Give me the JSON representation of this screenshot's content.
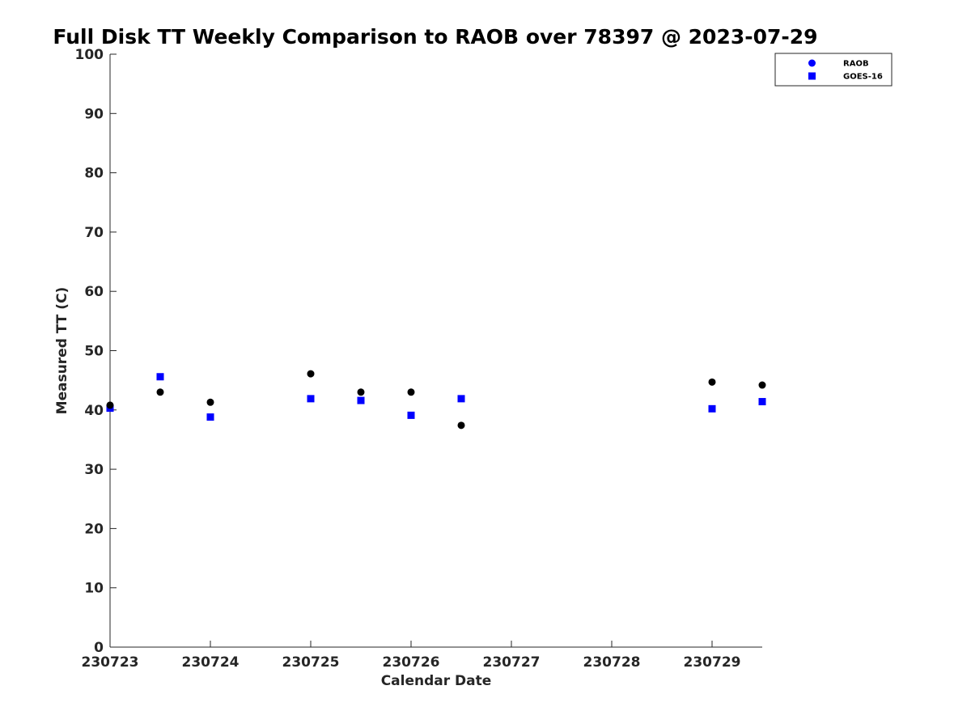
{
  "chart_data": {
    "type": "scatter",
    "title": "Full Disk TT Weekly Comparison to RAOB over 78397 @ 2023-07-29",
    "xlabel": "Calendar Date",
    "ylabel": "Measured TT (C)",
    "xlim": [
      0,
      6.5
    ],
    "ylim": [
      0,
      100
    ],
    "x_ticks": [
      0,
      1,
      2,
      3,
      4,
      5,
      6
    ],
    "x_tick_labels": [
      "230723",
      "230724",
      "230725",
      "230726",
      "230727",
      "230728",
      "230729"
    ],
    "y_ticks": [
      0,
      10,
      20,
      30,
      40,
      50,
      60,
      70,
      80,
      90,
      100
    ],
    "y_tick_labels": [
      "0",
      "10",
      "20",
      "30",
      "40",
      "50",
      "60",
      "70",
      "80",
      "90",
      "100"
    ],
    "grid": false,
    "legend_position": "top-right",
    "series": [
      {
        "name": "RAOB",
        "marker": "circle",
        "color": "#000000",
        "legend_color": "#0000ff",
        "points": [
          {
            "x": 0.0,
            "y": 40.8
          },
          {
            "x": 0.5,
            "y": 43.0
          },
          {
            "x": 1.0,
            "y": 41.3
          },
          {
            "x": 2.0,
            "y": 46.1
          },
          {
            "x": 2.5,
            "y": 43.0
          },
          {
            "x": 3.0,
            "y": 43.0
          },
          {
            "x": 3.5,
            "y": 37.4
          },
          {
            "x": 6.0,
            "y": 44.7
          },
          {
            "x": 6.5,
            "y": 44.2
          }
        ]
      },
      {
        "name": "GOES-16",
        "marker": "square",
        "color": "#0000ff",
        "legend_color": "#0000ff",
        "points": [
          {
            "x": 0.0,
            "y": 40.3
          },
          {
            "x": 0.5,
            "y": 45.6
          },
          {
            "x": 1.0,
            "y": 38.8
          },
          {
            "x": 2.0,
            "y": 41.9
          },
          {
            "x": 2.5,
            "y": 41.6
          },
          {
            "x": 3.0,
            "y": 39.1
          },
          {
            "x": 3.5,
            "y": 41.9
          },
          {
            "x": 6.0,
            "y": 40.2
          },
          {
            "x": 6.5,
            "y": 41.4
          }
        ]
      }
    ]
  }
}
